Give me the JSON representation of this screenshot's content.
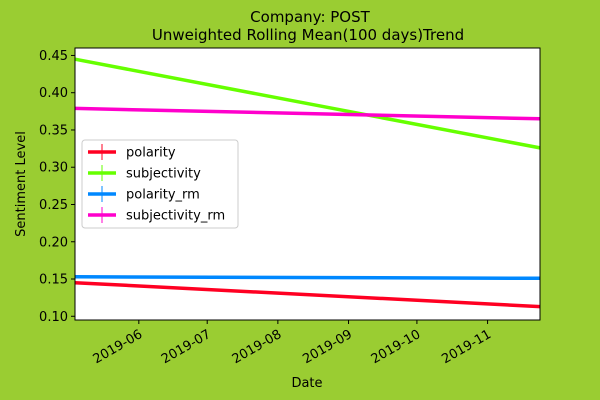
{
  "figure": {
    "background": "#9acd32",
    "plot_background": "#ffffff"
  },
  "chart_data": {
    "type": "line",
    "title": "Company: POST",
    "subtitle": "Unweighted Rolling Mean(100 days)Trend",
    "xlabel": "Date",
    "ylabel": "Sentiment Level",
    "xlim": [
      "2019-05-04",
      "2019-11-24"
    ],
    "ylim": [
      0.095,
      0.46
    ],
    "xticks": [
      "2019-06-01",
      "2019-07-01",
      "2019-08-01",
      "2019-09-01",
      "2019-10-01",
      "2019-11-01"
    ],
    "xtick_labels": [
      "2019-06",
      "2019-07",
      "2019-08",
      "2019-09",
      "2019-10",
      "2019-11"
    ],
    "yticks": [
      0.1,
      0.15,
      0.2,
      0.25,
      0.3,
      0.35,
      0.4,
      0.45
    ],
    "ytick_labels": [
      "0.10",
      "0.15",
      "0.20",
      "0.25",
      "0.30",
      "0.35",
      "0.40",
      "0.45"
    ],
    "grid": false,
    "legend": "center-left",
    "series": [
      {
        "name": "polarity",
        "color": "#ff0022",
        "x": [
          "2019-05-04",
          "2019-11-24"
        ],
        "y": [
          0.145,
          0.113
        ]
      },
      {
        "name": "subjectivity",
        "color": "#66ff00",
        "x": [
          "2019-05-04",
          "2019-11-24"
        ],
        "y": [
          0.445,
          0.326
        ]
      },
      {
        "name": "polarity_rm",
        "color": "#0088ff",
        "x": [
          "2019-05-04",
          "2019-11-24"
        ],
        "y": [
          0.153,
          0.151
        ]
      },
      {
        "name": "subjectivity_rm",
        "color": "#ff00cc",
        "x": [
          "2019-05-04",
          "2019-11-24"
        ],
        "y": [
          0.379,
          0.365
        ]
      }
    ]
  }
}
